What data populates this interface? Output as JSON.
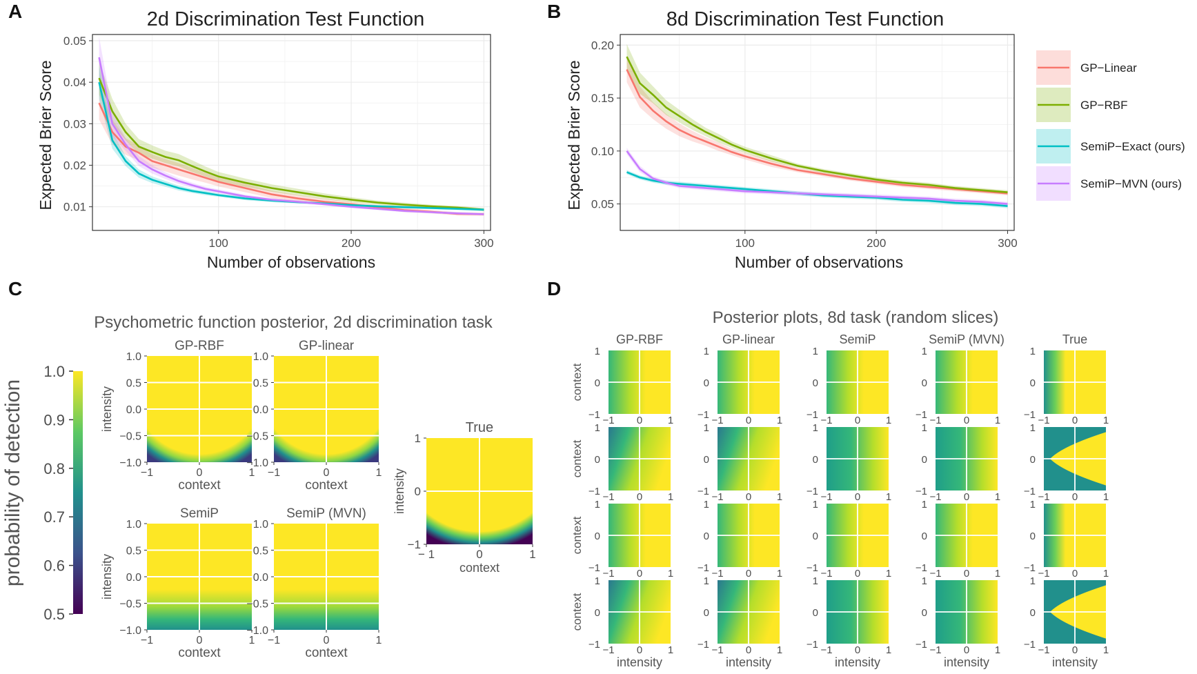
{
  "figure": {
    "panel_letters": [
      "A",
      "B",
      "C",
      "D"
    ],
    "colors": {
      "gp_linear": "#F8766D",
      "gp_rbf": "#7CAE00",
      "semip_exact": "#00BFC4",
      "semip_mvn": "#C77CFF",
      "grid": "#EBEBEB",
      "axis_text": "#4D4D4D"
    },
    "legend": {
      "placement": "right of panel B",
      "entries": [
        "GP−Linear",
        "GP−RBF",
        "SemiP−Exact (ours)",
        "SemiP−MVN (ours)"
      ]
    },
    "panel_c": {
      "title": "Psychometric function posterior, 2d discrimination task",
      "colorbar_label": "probability of detection",
      "colorbar_ticks": [
        1.0,
        0.9,
        0.8,
        0.7,
        0.6,
        0.5
      ],
      "colorbar_tick_labels": [
        "1.0",
        "0.9",
        "0.8",
        "0.7",
        "0.6",
        "0.5"
      ],
      "colormap": [
        "#440154",
        "#3B528B",
        "#21908C",
        "#5DC963",
        "#FDE725"
      ],
      "small_y_ticks": [
        "1.0",
        "0.5",
        "0.0",
        "−0.5",
        "−1.0"
      ],
      "small_x_ticks": [
        "−1",
        "0",
        "1"
      ],
      "xlabel": "context",
      "ylabel": "intensity",
      "panels": [
        {
          "title": "GP-RBF",
          "kind": "rbf"
        },
        {
          "title": "GP-linear",
          "kind": "rbf"
        },
        {
          "title": "SemiP",
          "kind": "semip"
        },
        {
          "title": "SemiP (MVN)",
          "kind": "semip"
        }
      ],
      "true_panel": {
        "title": "True",
        "y_ticks": [
          "1",
          "0",
          "−1"
        ],
        "x_ticks": [
          "− 1",
          "0",
          "1"
        ],
        "xlabel": "context",
        "ylabel": "intensity"
      }
    },
    "panel_d": {
      "title": "Posterior plots, 8d task (random slices)",
      "columns": [
        "GP-RBF",
        "GP-linear",
        "SemiP",
        "SemiP (MVN)",
        "True"
      ],
      "row_ylabel": "context",
      "bottom_xlabel": "intensity",
      "ticks": [
        "−1",
        "0",
        "1"
      ],
      "grid_ticks": [
        "1",
        "0",
        "−1"
      ],
      "cells": [
        [
          "a",
          "a",
          "a",
          "a",
          "p"
        ],
        [
          "b",
          "b",
          "c",
          "c",
          "v"
        ],
        [
          "a",
          "a",
          "a",
          "a",
          "p"
        ],
        [
          "b",
          "b",
          "c",
          "c",
          "v"
        ]
      ]
    }
  },
  "chart_data": [
    {
      "type": "line",
      "panel": "A",
      "title": "2d Discrimination Test Function",
      "xlabel": "Number of observations",
      "ylabel": "Expected Brier Score",
      "xlim": [
        5,
        305
      ],
      "ylim": [
        0.0043,
        0.0515
      ],
      "x_ticks": [
        100,
        200,
        300
      ],
      "x_tick_labels": [
        "100",
        "200",
        "300"
      ],
      "y_ticks": [
        0.01,
        0.02,
        0.03,
        0.04,
        0.05
      ],
      "y_tick_labels": [
        "0.01",
        "0.02",
        "0.03",
        "0.04",
        "0.05"
      ],
      "x": [
        10,
        20,
        30,
        40,
        50,
        60,
        70,
        80,
        90,
        100,
        120,
        140,
        160,
        180,
        200,
        220,
        240,
        260,
        280,
        300
      ],
      "series": [
        {
          "name": "GP−Linear",
          "color": "#F8766D",
          "values": [
            0.035,
            0.028,
            0.0245,
            0.023,
            0.021,
            0.02,
            0.019,
            0.018,
            0.017,
            0.016,
            0.0145,
            0.013,
            0.012,
            0.0112,
            0.0106,
            0.0099,
            0.0092,
            0.0088,
            0.0083,
            0.0082
          ],
          "band": [
            0.004,
            0.003,
            0.002,
            0.0018,
            0.0016,
            0.0015,
            0.0015,
            0.0014,
            0.0012,
            0.0011,
            0.001,
            0.0009,
            0.0008,
            0.0007,
            0.0006,
            0.0005,
            0.0005,
            0.0004,
            0.0004,
            0.0004
          ]
        },
        {
          "name": "GP−RBF",
          "color": "#7CAE00",
          "values": [
            0.041,
            0.033,
            0.028,
            0.0245,
            0.0232,
            0.022,
            0.0212,
            0.0198,
            0.0185,
            0.0173,
            0.0158,
            0.0145,
            0.0135,
            0.0125,
            0.0117,
            0.011,
            0.0105,
            0.0101,
            0.0098,
            0.0093
          ],
          "band": [
            0.004,
            0.003,
            0.002,
            0.0018,
            0.0016,
            0.0015,
            0.0015,
            0.0014,
            0.0012,
            0.0011,
            0.001,
            0.0009,
            0.0008,
            0.0007,
            0.0006,
            0.0005,
            0.0005,
            0.0004,
            0.0004,
            0.0004
          ]
        },
        {
          "name": "SemiP−Exact (ours)",
          "color": "#00BFC4",
          "values": [
            0.04,
            0.026,
            0.021,
            0.018,
            0.0165,
            0.0155,
            0.0145,
            0.0138,
            0.0133,
            0.0128,
            0.012,
            0.0115,
            0.0111,
            0.0108,
            0.0104,
            0.0101,
            0.0099,
            0.0097,
            0.0095,
            0.0093
          ],
          "band": [
            0.004,
            0.002,
            0.0012,
            0.001,
            0.0008,
            0.0007,
            0.0006,
            0.0005,
            0.0005,
            0.0004,
            0.0004,
            0.0004,
            0.0003,
            0.0003,
            0.0003,
            0.0003,
            0.0003,
            0.0003,
            0.0003,
            0.0003
          ]
        },
        {
          "name": "SemiP−MVN (ours)",
          "color": "#C77CFF",
          "values": [
            0.046,
            0.03,
            0.025,
            0.021,
            0.019,
            0.0175,
            0.0162,
            0.0152,
            0.0143,
            0.0137,
            0.0125,
            0.0117,
            0.0112,
            0.0106,
            0.01,
            0.0095,
            0.009,
            0.0087,
            0.0084,
            0.0082
          ],
          "band": [
            0.005,
            0.003,
            0.0015,
            0.0012,
            0.001,
            0.0008,
            0.0007,
            0.0006,
            0.0005,
            0.0005,
            0.0004,
            0.0004,
            0.0004,
            0.0003,
            0.0003,
            0.0003,
            0.0003,
            0.0003,
            0.0003,
            0.0003
          ]
        }
      ]
    },
    {
      "type": "line",
      "panel": "B",
      "title": "8d Discrimination Test Function",
      "xlabel": "Number of observations",
      "ylabel": "Expected Brier Score",
      "xlim": [
        5,
        305
      ],
      "ylim": [
        0.025,
        0.21
      ],
      "x_ticks": [
        100,
        200,
        300
      ],
      "x_tick_labels": [
        "100",
        "200",
        "300"
      ],
      "y_ticks": [
        0.05,
        0.1,
        0.15,
        0.2
      ],
      "y_tick_labels": [
        "0.05",
        "0.10",
        "0.15",
        "0.20"
      ],
      "x": [
        10,
        20,
        30,
        40,
        50,
        60,
        70,
        80,
        90,
        100,
        120,
        140,
        160,
        180,
        200,
        220,
        240,
        260,
        280,
        300
      ],
      "series": [
        {
          "name": "GP−Linear",
          "color": "#F8766D",
          "values": [
            0.177,
            0.151,
            0.138,
            0.128,
            0.12,
            0.114,
            0.109,
            0.104,
            0.099,
            0.095,
            0.088,
            0.082,
            0.078,
            0.074,
            0.071,
            0.068,
            0.066,
            0.064,
            0.062,
            0.06
          ],
          "band": [
            0.012,
            0.01,
            0.008,
            0.007,
            0.006,
            0.005,
            0.004,
            0.004,
            0.003,
            0.003,
            0.003,
            0.002,
            0.002,
            0.002,
            0.002,
            0.002,
            0.002,
            0.002,
            0.002,
            0.002
          ]
        },
        {
          "name": "GP−RBF",
          "color": "#7CAE00",
          "values": [
            0.189,
            0.164,
            0.153,
            0.141,
            0.133,
            0.125,
            0.118,
            0.112,
            0.106,
            0.101,
            0.093,
            0.086,
            0.081,
            0.077,
            0.073,
            0.07,
            0.068,
            0.065,
            0.063,
            0.061
          ],
          "band": [
            0.012,
            0.01,
            0.008,
            0.007,
            0.006,
            0.005,
            0.004,
            0.004,
            0.003,
            0.003,
            0.003,
            0.002,
            0.002,
            0.002,
            0.002,
            0.002,
            0.002,
            0.002,
            0.002,
            0.002
          ]
        },
        {
          "name": "SemiP−Exact (ours)",
          "color": "#00BFC4",
          "values": [
            0.08,
            0.075,
            0.072,
            0.07,
            0.069,
            0.068,
            0.067,
            0.066,
            0.065,
            0.064,
            0.062,
            0.06,
            0.058,
            0.057,
            0.056,
            0.054,
            0.053,
            0.051,
            0.05,
            0.048
          ],
          "band": [
            0.002,
            0.002,
            0.002,
            0.002,
            0.002,
            0.002,
            0.002,
            0.002,
            0.002,
            0.002,
            0.002,
            0.002,
            0.002,
            0.002,
            0.002,
            0.002,
            0.002,
            0.002,
            0.002,
            0.002
          ]
        },
        {
          "name": "SemiP−MVN (ours)",
          "color": "#C77CFF",
          "values": [
            0.1,
            0.083,
            0.074,
            0.07,
            0.067,
            0.066,
            0.065,
            0.064,
            0.063,
            0.062,
            0.061,
            0.06,
            0.059,
            0.058,
            0.057,
            0.056,
            0.055,
            0.053,
            0.052,
            0.05
          ],
          "band": [
            0.003,
            0.003,
            0.002,
            0.002,
            0.002,
            0.002,
            0.002,
            0.002,
            0.002,
            0.002,
            0.002,
            0.002,
            0.002,
            0.002,
            0.002,
            0.002,
            0.002,
            0.002,
            0.002,
            0.002
          ]
        }
      ]
    }
  ]
}
